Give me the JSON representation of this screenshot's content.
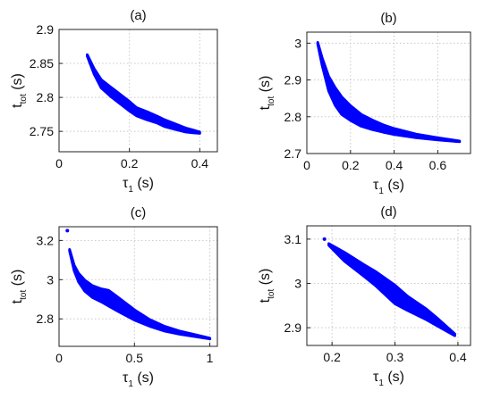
{
  "chart_data": [
    {
      "type": "scatter",
      "title": "(a)",
      "xlabel": "τ",
      "xlabel_sub": "1",
      "xlabel_unit": " (s)",
      "ylabel": "t",
      "ylabel_sub": "tot",
      "ylabel_unit": " (s)",
      "xlim": [
        0,
        0.45
      ],
      "ylim": [
        2.72,
        2.9
      ],
      "xticks": [
        0,
        0.2,
        0.4
      ],
      "yticks": [
        2.75,
        2.8,
        2.85,
        2.9
      ],
      "xtick_labels": [
        "0",
        "0.2",
        "0.4"
      ],
      "ytick_labels": [
        "2.75",
        "2.8",
        "2.85",
        "2.9"
      ],
      "grid": true,
      "color": "#0000ff",
      "series": [
        {
          "x": [
            0.08,
            0.1,
            0.12,
            0.15,
            0.18,
            0.2,
            0.22,
            0.25,
            0.28,
            0.3,
            0.33,
            0.36,
            0.38,
            0.4
          ],
          "y": [
            2.862,
            2.838,
            2.82,
            2.807,
            2.795,
            2.787,
            2.779,
            2.773,
            2.767,
            2.762,
            2.757,
            2.752,
            2.75,
            2.748
          ],
          "spread": [
            0.001,
            0.004,
            0.006,
            0.007,
            0.007,
            0.007,
            0.006,
            0.006,
            0.005,
            0.005,
            0.004,
            0.003,
            0.002,
            0.001
          ]
        }
      ]
    },
    {
      "type": "scatter",
      "title": "(b)",
      "xlabel": "τ",
      "xlabel_sub": "1",
      "xlabel_unit": " (s)",
      "ylabel": "t",
      "ylabel_sub": "tot",
      "ylabel_unit": " (s)",
      "xlim": [
        0,
        0.75
      ],
      "ylim": [
        2.7,
        3.03
      ],
      "xticks": [
        0,
        0.2,
        0.4,
        0.6
      ],
      "yticks": [
        2.7,
        2.8,
        2.9,
        3.0
      ],
      "xtick_labels": [
        "0",
        "0.2",
        "0.4",
        "0.6"
      ],
      "ytick_labels": [
        "2.7",
        "2.8",
        "2.9",
        "3"
      ],
      "grid": true,
      "color": "#0000ff",
      "series": [
        {
          "x": [
            0.05,
            0.07,
            0.1,
            0.13,
            0.16,
            0.2,
            0.25,
            0.3,
            0.35,
            0.4,
            0.5,
            0.6,
            0.7
          ],
          "y": [
            3.0,
            2.95,
            2.89,
            2.855,
            2.83,
            2.81,
            2.79,
            2.778,
            2.768,
            2.76,
            2.748,
            2.74,
            2.733
          ],
          "spread": [
            0.002,
            0.01,
            0.02,
            0.024,
            0.024,
            0.02,
            0.016,
            0.013,
            0.01,
            0.008,
            0.005,
            0.003,
            0.001
          ]
        }
      ]
    },
    {
      "type": "scatter",
      "title": "(c)",
      "xlabel": "τ",
      "xlabel_sub": "1",
      "xlabel_unit": " (s)",
      "ylabel": "t",
      "ylabel_sub": "tot",
      "ylabel_unit": " (s)",
      "xlim": [
        0,
        1.05
      ],
      "ylim": [
        2.66,
        3.27
      ],
      "xticks": [
        0,
        0.5,
        1
      ],
      "yticks": [
        2.8,
        3.0,
        3.2
      ],
      "xtick_labels": [
        "0",
        "0.5",
        "1"
      ],
      "ytick_labels": [
        "2.8",
        "3",
        "3.2"
      ],
      "grid": true,
      "color": "#0000ff",
      "series": [
        {
          "x": [
            0.07,
            0.1,
            0.13,
            0.17,
            0.22,
            0.28,
            0.33,
            0.4,
            0.5,
            0.6,
            0.7,
            0.8,
            0.9,
            1.0
          ],
          "y": [
            3.15,
            3.06,
            3.01,
            2.97,
            2.94,
            2.92,
            2.905,
            2.87,
            2.82,
            2.78,
            2.75,
            2.73,
            2.715,
            2.7
          ],
          "spread": [
            0.004,
            0.014,
            0.022,
            0.028,
            0.03,
            0.033,
            0.04,
            0.035,
            0.026,
            0.017,
            0.012,
            0.008,
            0.005,
            0.002
          ]
        },
        {
          "x": [
            0.055
          ],
          "y": [
            3.25
          ],
          "spread": [
            0
          ]
        }
      ]
    },
    {
      "type": "scatter",
      "title": "(d)",
      "xlabel": "τ",
      "xlabel_sub": "1",
      "xlabel_unit": " (s)",
      "ylabel": "t",
      "ylabel_sub": "tot",
      "ylabel_unit": " (s)",
      "xlim": [
        0.16,
        0.42
      ],
      "ylim": [
        2.86,
        3.13
      ],
      "xticks": [
        0.2,
        0.3,
        0.4
      ],
      "yticks": [
        2.9,
        3.0,
        3.1
      ],
      "xtick_labels": [
        "0.2",
        "0.3",
        "0.4"
      ],
      "ytick_labels": [
        "2.9",
        "3",
        "3.1"
      ],
      "grid": true,
      "color": "#0000ff",
      "series": [
        {
          "x": [
            0.195,
            0.22,
            0.25,
            0.27,
            0.3,
            0.32,
            0.35,
            0.37,
            0.395
          ],
          "y": [
            3.088,
            3.06,
            3.03,
            3.01,
            2.975,
            2.955,
            2.93,
            2.91,
            2.884
          ],
          "spread": [
            0.002,
            0.01,
            0.013,
            0.016,
            0.021,
            0.016,
            0.012,
            0.008,
            0.002
          ]
        },
        {
          "x": [
            0.188
          ],
          "y": [
            3.1
          ],
          "spread": [
            0
          ]
        }
      ]
    }
  ]
}
